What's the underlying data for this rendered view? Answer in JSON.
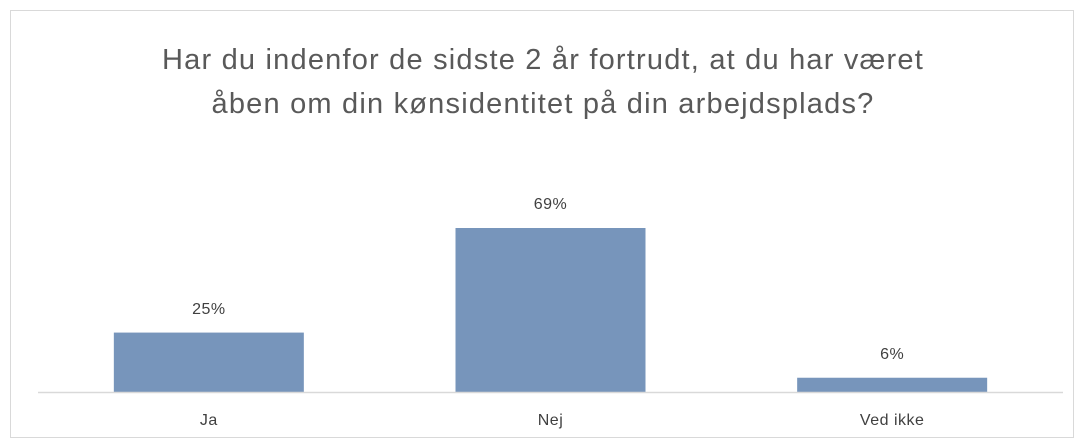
{
  "chart_data": {
    "type": "bar",
    "title": "Har du indenfor de sidste 2 år fortrudt, at du har været åben om din kønsidentitet på din arbejdsplads?",
    "categories": [
      "Ja",
      "Nej",
      "Ved ikke"
    ],
    "values": [
      25,
      69,
      6
    ],
    "value_labels": [
      "25%",
      "69%",
      "6%"
    ],
    "color": "#7795bb"
  }
}
